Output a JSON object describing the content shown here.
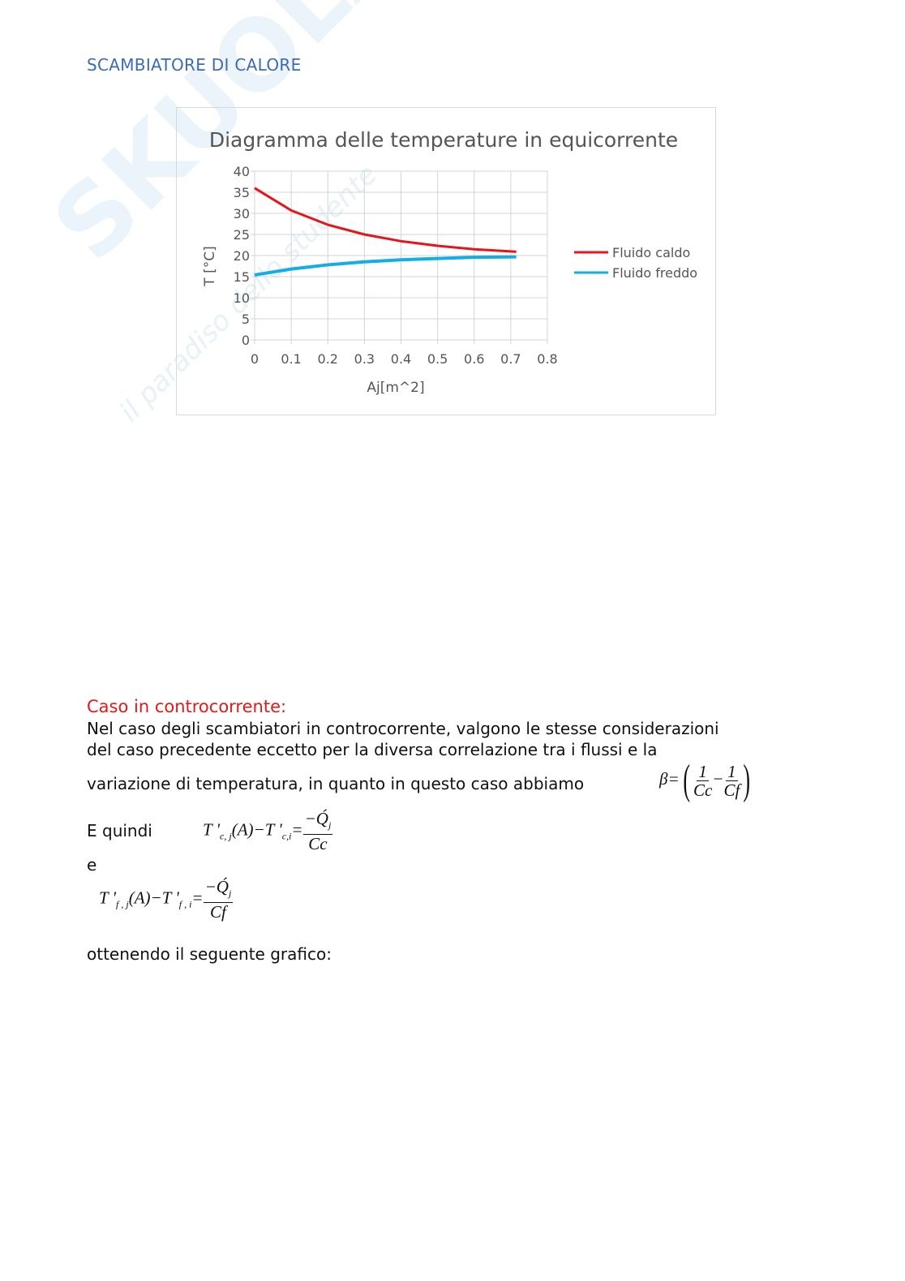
{
  "header": "SCAMBIATORE DI CALORE",
  "watermark": {
    "logo": "SKUOLA.net",
    "tagline": "il paradiso dello studente"
  },
  "chart_data": {
    "type": "line",
    "title": "Diagramma delle temperature in equicorrente",
    "xlabel": "Aj[m^2]",
    "ylabel": "T [°C]",
    "xlim": [
      0,
      0.8
    ],
    "ylim": [
      0,
      40
    ],
    "xticks": [
      "0",
      "0.1",
      "0.2",
      "0.3",
      "0.4",
      "0.5",
      "0.6",
      "0.7",
      "0.8"
    ],
    "yticks": [
      "0",
      "5",
      "10",
      "15",
      "20",
      "25",
      "30",
      "35",
      "40"
    ],
    "grid": true,
    "legend": "right",
    "x": [
      0,
      0.1,
      0.2,
      0.3,
      0.4,
      0.5,
      0.6,
      0.715
    ],
    "series": [
      {
        "name": "Fluido caldo",
        "color": "#e8141a",
        "values": [
          36,
          30.7,
          27.3,
          25.0,
          23.4,
          22.3,
          21.5,
          20.9
        ]
      },
      {
        "name": "Fluido freddo",
        "color": "#12aee8",
        "values": [
          15.4,
          16.8,
          17.8,
          18.5,
          19.0,
          19.3,
          19.6,
          19.7
        ]
      }
    ]
  },
  "section": {
    "title": "Caso in controcorrente:",
    "line1": "Nel caso degli scambiatori in controcorrente, valgono le stesse considerazioni",
    "line2": "del caso precedente eccetto per la diversa correlazione tra i flussi e la",
    "line3": "variazione di temperatura, in quanto in questo caso abbiamo",
    "eq_beta": {
      "lhs": "β=",
      "n1": "1",
      "d1": "Cc",
      "minus": "−",
      "n2": "1",
      "d2": "Cf"
    },
    "quindi": "E quindi",
    "eq1": {
      "lhs": "T '",
      "sub1": "c, j",
      "mid": "(A)−T '",
      "sub2": "c,i",
      "eq": "=",
      "num": "−Q́",
      "numsub": "j",
      "den": "Cc"
    },
    "e": "e",
    "eq2": {
      "lhs": "T '",
      "sub1": "f , j",
      "mid": "(A)−T '",
      "sub2": "f , i",
      "eq": "=",
      "num": "−Q́",
      "numsub": "j",
      "den": "Cf"
    },
    "closing": "ottenendo il seguente grafico:"
  }
}
